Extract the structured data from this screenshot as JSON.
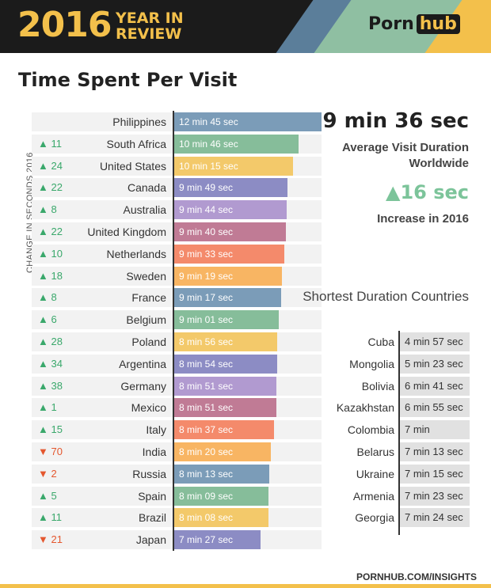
{
  "header": {
    "year": "2016",
    "tagline_line1": "YEAR IN",
    "tagline_line2": "REVIEW",
    "logo_left": "Porn",
    "logo_right": "hub",
    "colors": {
      "background": "#1b1b1b",
      "accent": "#f3c04b"
    }
  },
  "title": "Time Spent Per Visit",
  "ylabel": "CHANGE IN SECONDS 2016",
  "summary": {
    "average": "9 min 36 sec",
    "average_label": "Average Visit Duration Worldwide",
    "increase": "▲16 sec",
    "increase_label": "Increase in 2016"
  },
  "chart_data": {
    "type": "bar",
    "orientation": "horizontal",
    "title": "Time Spent Per Visit",
    "value_unit": "seconds",
    "xlim": [
      0,
      765
    ],
    "categories": [
      "Philippines",
      "South Africa",
      "United States",
      "Canada",
      "Australia",
      "United Kingdom",
      "Netherlands",
      "Sweden",
      "France",
      "Belgium",
      "Poland",
      "Argentina",
      "Germany",
      "Mexico",
      "Italy",
      "India",
      "Russia",
      "Spain",
      "Brazil",
      "Japan"
    ],
    "values": [
      765,
      646,
      615,
      589,
      584,
      580,
      573,
      559,
      557,
      541,
      536,
      534,
      531,
      531,
      517,
      500,
      493,
      489,
      488,
      447
    ],
    "value_labels": [
      "12 min 45 sec",
      "10 min 46 sec",
      "10 min 15 sec",
      "9 min 49 sec",
      "9 min 44 sec",
      "9 min 40 sec",
      "9 min 33 sec",
      "9 min 19 sec",
      "9 min 17 sec",
      "9 min 01 sec",
      "8 min 56 sec",
      "8 min 54 sec",
      "8 min 51 sec",
      "8 min 51 sec",
      "8 min 37 sec",
      "8 min 20 sec",
      "8 min 13 sec",
      "8 min 09 sec",
      "8 min 08 sec",
      "7 min 27 sec"
    ],
    "change": [
      "",
      "▲ 11",
      "▲ 24",
      "▲ 22",
      "▲ 8",
      "▲ 22",
      "▲ 10",
      "▲ 18",
      "▲ 8",
      "▲ 6",
      "▲ 28",
      "▲ 34",
      "▲ 38",
      "▲ 1",
      "▲ 15",
      "▼ 70",
      "▼ 2",
      "▲ 5",
      "▲ 11",
      "▼ 21"
    ],
    "change_direction": [
      "",
      "up",
      "up",
      "up",
      "up",
      "up",
      "up",
      "up",
      "up",
      "up",
      "up",
      "up",
      "up",
      "up",
      "up",
      "down",
      "down",
      "up",
      "up",
      "down"
    ],
    "colors": [
      "#7b9cb8",
      "#86bd9a",
      "#f3c96a",
      "#8c8cc4",
      "#b19ad0",
      "#c07b95",
      "#f48a6b",
      "#f8b563",
      "#7b9cb8",
      "#86bd9a",
      "#f3c96a",
      "#8c8cc4",
      "#b19ad0",
      "#c07b95",
      "#f48a6b",
      "#f8b563",
      "#7b9cb8",
      "#86bd9a",
      "#f3c96a",
      "#8c8cc4"
    ]
  },
  "shortest": {
    "title": "Shortest Duration Countries",
    "rows": [
      {
        "country": "Cuba",
        "value": "4 min 57 sec"
      },
      {
        "country": "Mongolia",
        "value": "5 min 23 sec"
      },
      {
        "country": "Bolivia",
        "value": "6 min 41 sec"
      },
      {
        "country": "Kazakhstan",
        "value": "6 min 55 sec"
      },
      {
        "country": "Colombia",
        "value": "7 min"
      },
      {
        "country": "Belarus",
        "value": "7 min 13 sec"
      },
      {
        "country": "Ukraine",
        "value": "7 min 15 sec"
      },
      {
        "country": "Armenia",
        "value": "7 min 23 sec"
      },
      {
        "country": "Georgia",
        "value": "7 min 24 sec"
      }
    ]
  },
  "footer": {
    "url": "PORNHUB.COM/INSIGHTS"
  }
}
